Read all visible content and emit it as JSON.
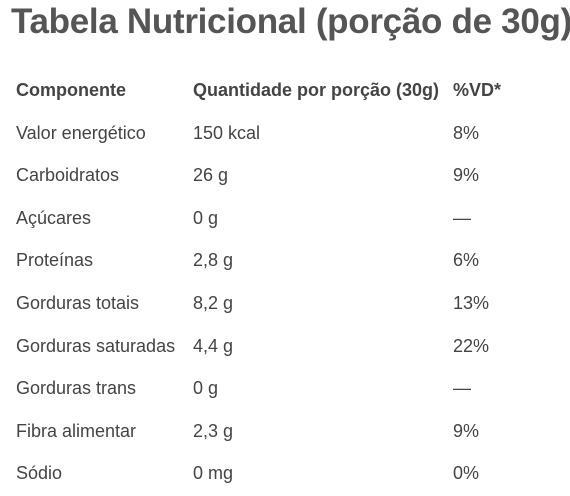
{
  "title": "Tabela Nutricional (porção de 30g)",
  "headers": {
    "component": "Componente",
    "quantity": "Quantidade por porção (30g)",
    "vd": "%VD*"
  },
  "rows": [
    {
      "component": "Valor energético",
      "quantity": "150 kcal",
      "vd": "8%"
    },
    {
      "component": "Carboidratos",
      "quantity": "26 g",
      "vd": "9%"
    },
    {
      "component": "Açúcares",
      "quantity": "0 g",
      "vd": "—"
    },
    {
      "component": "Proteínas",
      "quantity": "2,8 g",
      "vd": "6%"
    },
    {
      "component": "Gorduras totais",
      "quantity": "8,2 g",
      "vd": "13%"
    },
    {
      "component": "Gorduras saturadas",
      "quantity": "4,4 g",
      "vd": "22%"
    },
    {
      "component": "Gorduras trans",
      "quantity": "0 g",
      "vd": "—"
    },
    {
      "component": "Fibra alimentar",
      "quantity": "2,3 g",
      "vd": "9%"
    },
    {
      "component": "Sódio",
      "quantity": "0 mg",
      "vd": "0%"
    }
  ]
}
